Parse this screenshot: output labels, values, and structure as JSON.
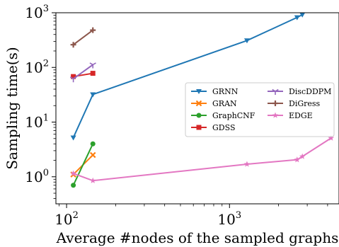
{
  "chart_data": {
    "type": "line",
    "xscale": "log",
    "yscale": "log",
    "xlim": [
      86,
      4700
    ],
    "ylim": [
      0.32,
      1000
    ],
    "xticks": [
      {
        "value": 100,
        "base": "10",
        "exp": "2"
      },
      {
        "value": 1000,
        "base": "10",
        "exp": "3"
      }
    ],
    "yticks": [
      {
        "value": 1,
        "base": "10",
        "exp": "0"
      },
      {
        "value": 10,
        "base": "10",
        "exp": "1"
      },
      {
        "value": 100,
        "base": "10",
        "exp": "2"
      },
      {
        "value": 1000,
        "base": "10",
        "exp": "3"
      }
    ],
    "xlabel": "Average #nodes of the sampled graphs",
    "ylabel": "Sampling time(s)",
    "legend": {
      "placement": "center-right",
      "columns": 2
    },
    "grid": false,
    "series": [
      {
        "name": "GRNN",
        "color": "#1f77b4",
        "marker": "triangle-down",
        "points": [
          [
            110,
            5.2
          ],
          [
            145,
            32
          ],
          [
            1280,
            310
          ],
          [
            2600,
            820
          ],
          [
            2800,
            920
          ]
        ]
      },
      {
        "name": "GRAN",
        "color": "#ff7f0e",
        "marker": "x",
        "points": [
          [
            110,
            1.1
          ],
          [
            145,
            2.5
          ]
        ]
      },
      {
        "name": "GraphCNF",
        "color": "#2ca02c",
        "marker": "circle",
        "points": [
          [
            110,
            0.7
          ],
          [
            145,
            4.0
          ]
        ]
      },
      {
        "name": "GDSS",
        "color": "#d62728",
        "marker": "square",
        "points": [
          [
            110,
            68
          ],
          [
            145,
            78
          ]
        ]
      },
      {
        "name": "DiscDDPM",
        "color": "#9467bd",
        "marker": "tri-down",
        "points": [
          [
            110,
            62
          ],
          [
            145,
            112
          ]
        ]
      },
      {
        "name": "DiGress",
        "color": "#8c564b",
        "marker": "plus",
        "points": [
          [
            110,
            260
          ],
          [
            145,
            480
          ]
        ]
      },
      {
        "name": "EDGE",
        "color": "#e377c2",
        "marker": "star",
        "points": [
          [
            110,
            1.15
          ],
          [
            145,
            0.85
          ],
          [
            1280,
            1.7
          ],
          [
            2600,
            2.05
          ],
          [
            2800,
            2.35
          ],
          [
            4200,
            5.1
          ]
        ]
      }
    ]
  }
}
